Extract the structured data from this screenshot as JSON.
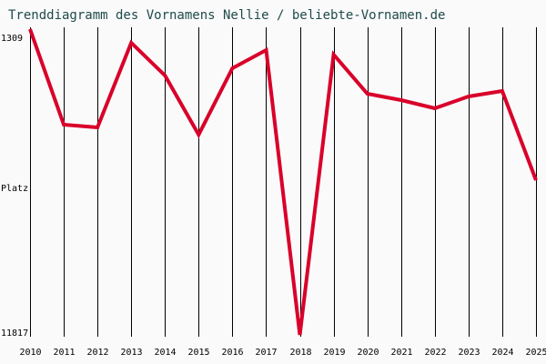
{
  "title": "Trenddiagramm des Vornamens Nellie / beliebte-Vornamen.de",
  "y_axis": {
    "top_label": "1309",
    "mid_label": "Platz",
    "bottom_label": "11817"
  },
  "colors": {
    "line": "#d9002a",
    "grid": "#000000",
    "title": "#1f4a4a",
    "background": "#fafafa"
  },
  "chart_data": {
    "type": "line",
    "title": "Trenddiagramm des Vornamens Nellie / beliebte-Vornamen.de",
    "xlabel": "",
    "ylabel": "Platz",
    "ylim": [
      11817,
      1309
    ],
    "y_inverted": true,
    "grid": "vertical",
    "categories": [
      "2010",
      "2011",
      "2012",
      "2013",
      "2014",
      "2015",
      "2016",
      "2017",
      "2018",
      "2019",
      "2020",
      "2021",
      "2022",
      "2023",
      "2024",
      "2025"
    ],
    "series": [
      {
        "name": "Nellie",
        "values": [
          1309,
          4592,
          4686,
          1778,
          2904,
          4936,
          2654,
          2028,
          11817,
          2185,
          3529,
          3748,
          4030,
          3623,
          3435,
          6500
        ]
      }
    ]
  }
}
